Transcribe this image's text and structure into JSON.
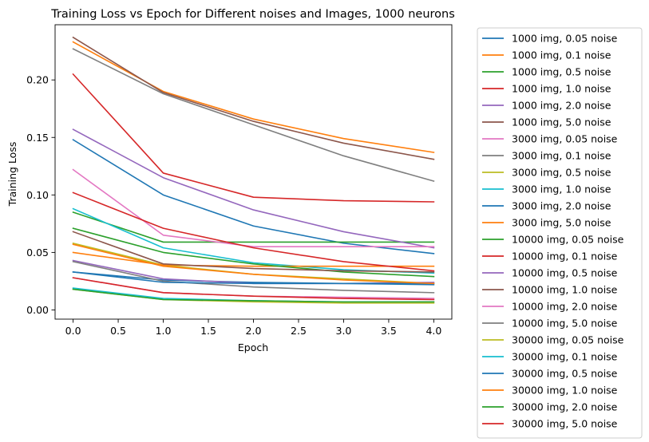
{
  "chart_data": {
    "type": "line",
    "title": "Training Loss vs Epoch for Different noises and Images, 1000 neurons",
    "xlabel": "Epoch",
    "ylabel": "Training Loss",
    "xlim": [
      -0.2,
      4.2
    ],
    "ylim": [
      -0.008,
      0.248
    ],
    "xticks": [
      0.0,
      0.5,
      1.0,
      1.5,
      2.0,
      2.5,
      3.0,
      3.5,
      4.0
    ],
    "xtick_labels": [
      "0.0",
      "0.5",
      "1.0",
      "1.5",
      "2.0",
      "2.5",
      "3.0",
      "3.5",
      "4.0"
    ],
    "yticks": [
      0.0,
      0.05,
      0.1,
      0.15,
      0.2
    ],
    "ytick_labels": [
      "0.00",
      "0.05",
      "0.10",
      "0.15",
      "0.20"
    ],
    "grid": false,
    "legend_position": "outside-right",
    "x": [
      0,
      1,
      2,
      3,
      4
    ],
    "series": [
      {
        "name": "1000 img, 0.05 noise",
        "color": "#1f77b4",
        "values": [
          0.148,
          0.1,
          0.073,
          0.058,
          0.049
        ]
      },
      {
        "name": "1000 img, 0.1 noise",
        "color": "#ff7f0e",
        "values": [
          0.233,
          0.19,
          0.166,
          0.149,
          0.137
        ]
      },
      {
        "name": "1000 img, 0.5 noise",
        "color": "#2ca02c",
        "values": [
          0.085,
          0.059,
          0.059,
          0.059,
          0.059
        ]
      },
      {
        "name": "1000 img, 1.0 noise",
        "color": "#d62728",
        "values": [
          0.205,
          0.119,
          0.098,
          0.095,
          0.094
        ]
      },
      {
        "name": "1000 img, 2.0 noise",
        "color": "#9467bd",
        "values": [
          0.157,
          0.115,
          0.087,
          0.068,
          0.054
        ]
      },
      {
        "name": "1000 img, 5.0 noise",
        "color": "#8c564b",
        "values": [
          0.237,
          0.189,
          0.164,
          0.145,
          0.131
        ]
      },
      {
        "name": "3000 img, 0.05 noise",
        "color": "#e377c2",
        "values": [
          0.122,
          0.065,
          0.055,
          0.055,
          0.055
        ]
      },
      {
        "name": "3000 img, 0.1 noise",
        "color": "#7f7f7f",
        "values": [
          0.227,
          0.188,
          0.161,
          0.134,
          0.112
        ]
      },
      {
        "name": "3000 img, 0.5 noise",
        "color": "#bcbd22",
        "values": [
          0.058,
          0.039,
          0.031,
          0.027,
          0.023
        ]
      },
      {
        "name": "3000 img, 1.0 noise",
        "color": "#17becf",
        "values": [
          0.088,
          0.054,
          0.041,
          0.035,
          0.032
        ]
      },
      {
        "name": "3000 img, 2.0 noise",
        "color": "#1f77b4",
        "values": [
          0.033,
          0.026,
          0.024,
          0.023,
          0.022
        ]
      },
      {
        "name": "3000 img, 5.0 noise",
        "color": "#ff7f0e",
        "values": [
          0.05,
          0.039,
          0.038,
          0.038,
          0.038
        ]
      },
      {
        "name": "10000 img, 0.05 noise",
        "color": "#2ca02c",
        "values": [
          0.071,
          0.05,
          0.04,
          0.033,
          0.029
        ]
      },
      {
        "name": "10000 img, 0.1 noise",
        "color": "#d62728",
        "values": [
          0.102,
          0.071,
          0.054,
          0.042,
          0.034
        ]
      },
      {
        "name": "10000 img, 0.5 noise",
        "color": "#9467bd",
        "values": [
          0.043,
          0.027,
          0.023,
          0.023,
          0.024
        ]
      },
      {
        "name": "10000 img, 1.0 noise",
        "color": "#8c564b",
        "values": [
          0.068,
          0.04,
          0.036,
          0.034,
          0.033
        ]
      },
      {
        "name": "10000 img, 2.0 noise",
        "color": "#e377c2",
        "values": [
          0.028,
          0.015,
          0.012,
          0.011,
          0.01
        ]
      },
      {
        "name": "10000 img, 5.0 noise",
        "color": "#7f7f7f",
        "values": [
          0.042,
          0.025,
          0.02,
          0.017,
          0.015
        ]
      },
      {
        "name": "30000 img, 0.05 noise",
        "color": "#bcbd22",
        "values": [
          0.018,
          0.009,
          0.007,
          0.006,
          0.006
        ]
      },
      {
        "name": "30000 img, 0.1 noise",
        "color": "#17becf",
        "values": [
          0.019,
          0.01,
          0.008,
          0.007,
          0.007
        ]
      },
      {
        "name": "30000 img, 0.5 noise",
        "color": "#1f77b4",
        "values": [
          0.033,
          0.024,
          0.023,
          0.023,
          0.023
        ]
      },
      {
        "name": "30000 img, 1.0 noise",
        "color": "#ff7f0e",
        "values": [
          0.057,
          0.038,
          0.031,
          0.026,
          0.023
        ]
      },
      {
        "name": "30000 img, 2.0 noise",
        "color": "#2ca02c",
        "values": [
          0.018,
          0.009,
          0.008,
          0.007,
          0.007
        ]
      },
      {
        "name": "30000 img, 5.0 noise",
        "color": "#d62728",
        "values": [
          0.028,
          0.015,
          0.012,
          0.01,
          0.009
        ]
      }
    ]
  }
}
